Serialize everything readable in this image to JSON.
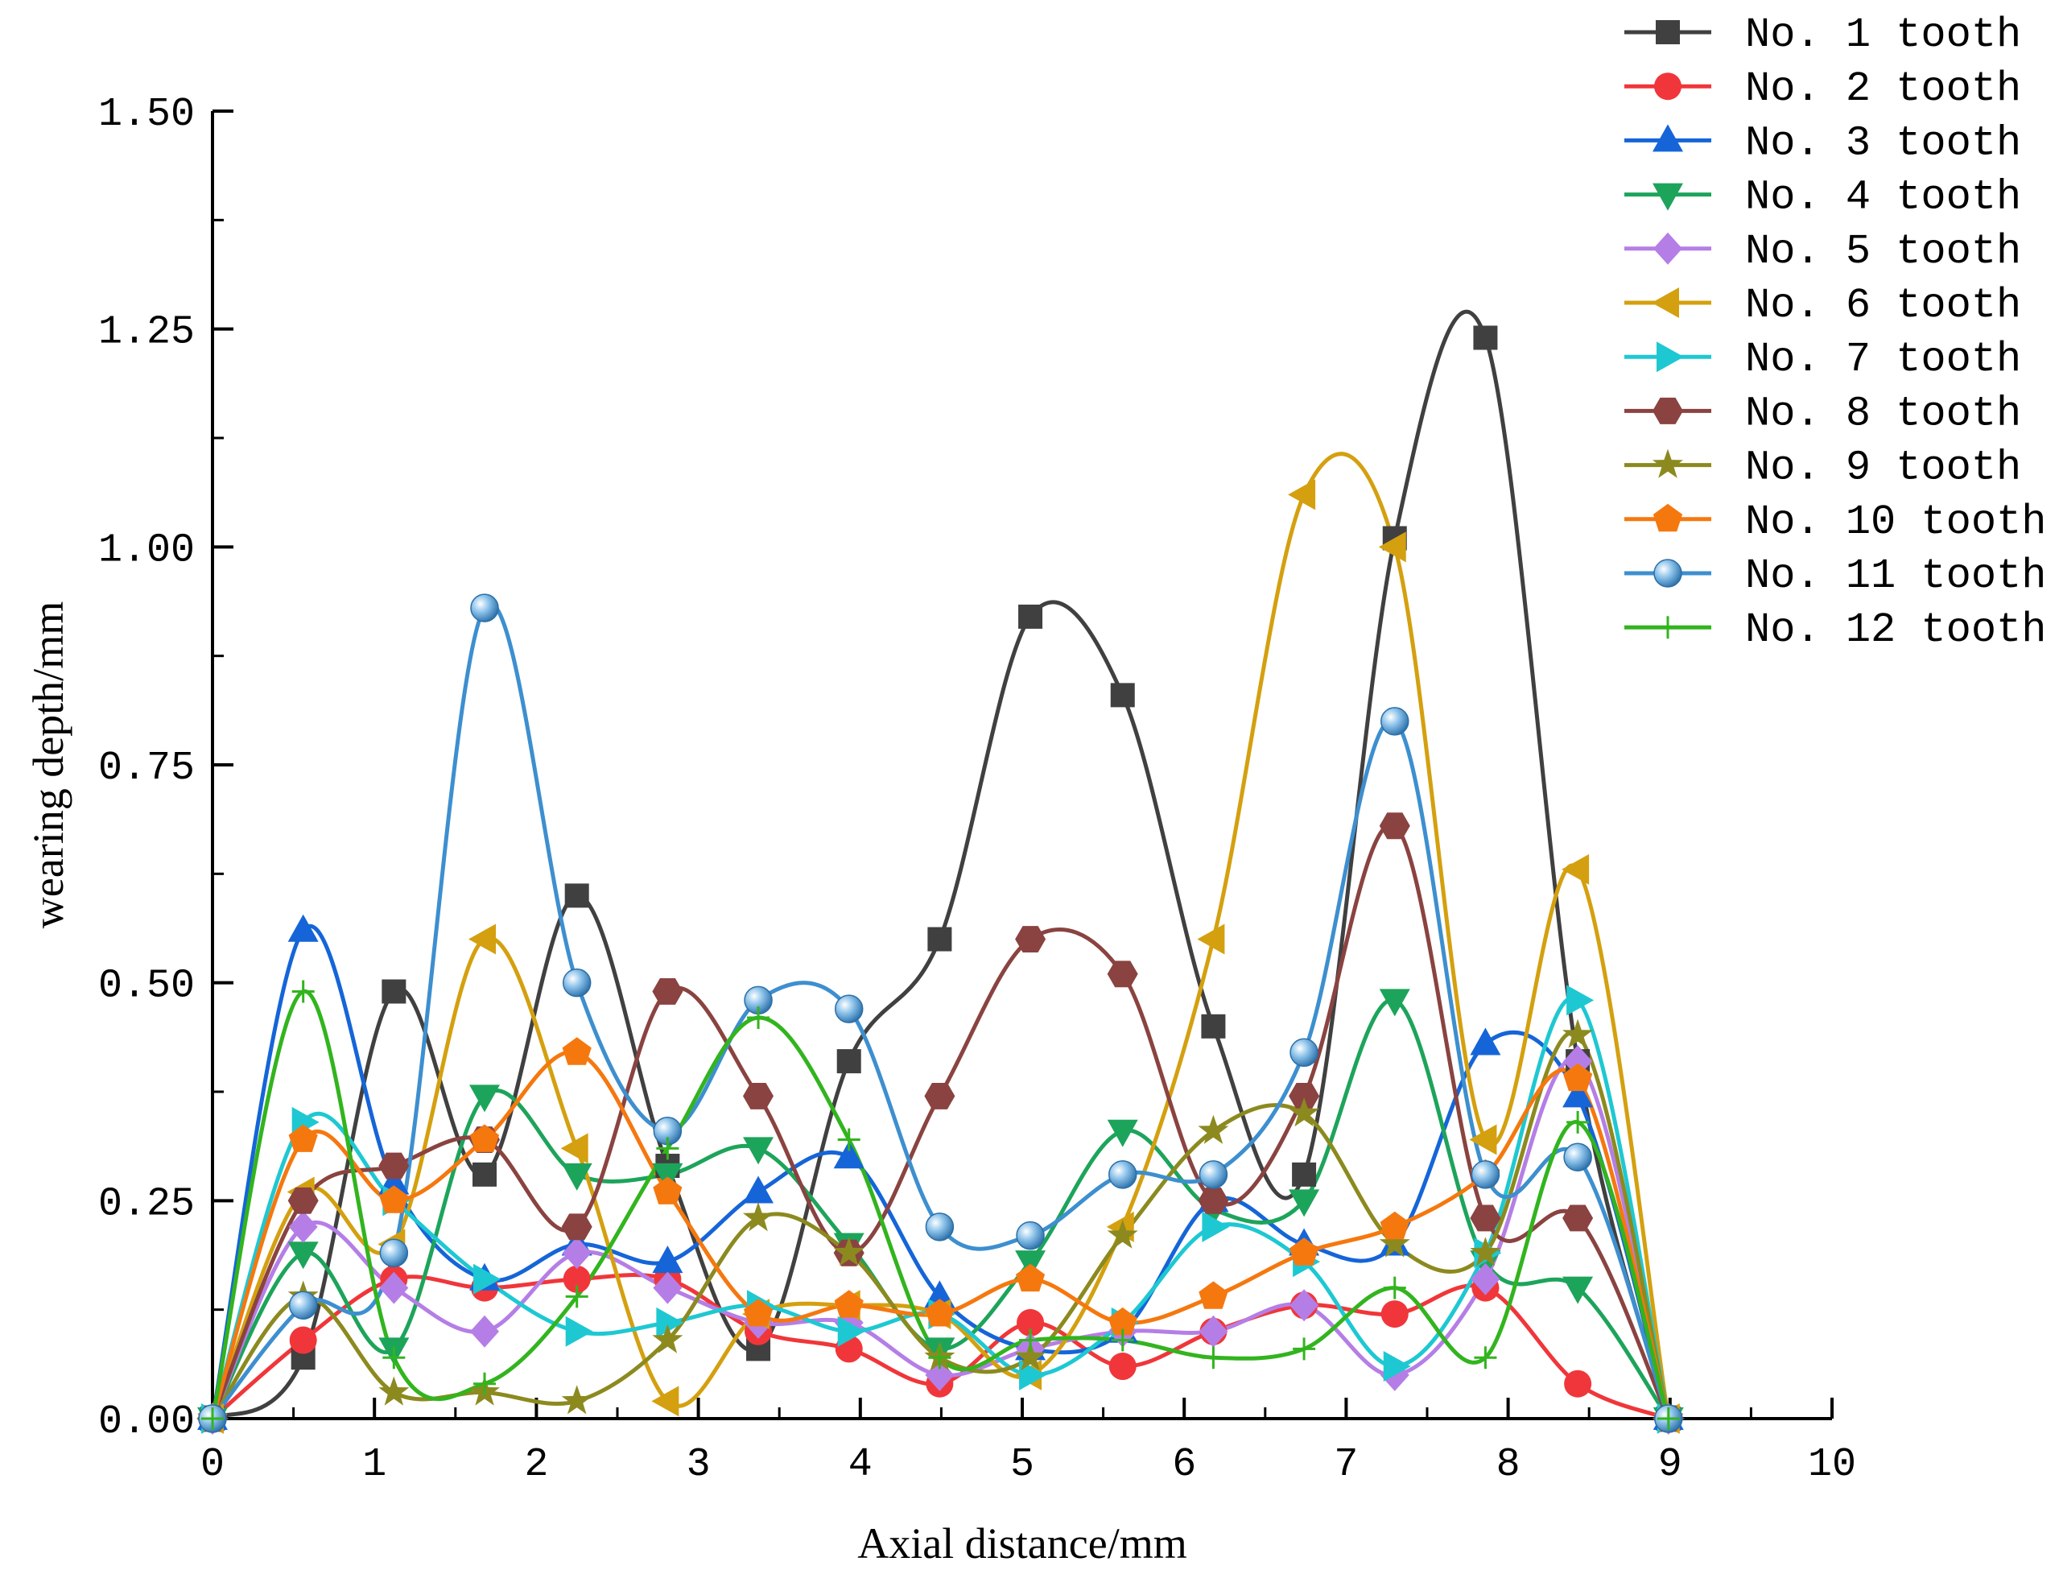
{
  "chart_data": {
    "type": "line",
    "title": "",
    "xlabel": "Axial distance/mm",
    "ylabel": "wearing depth/mm",
    "xlim": [
      0,
      10
    ],
    "ylim": [
      0,
      1.5
    ],
    "xticks": [
      0,
      1,
      2,
      3,
      4,
      5,
      6,
      7,
      8,
      9,
      10
    ],
    "yticks": [
      0.0,
      0.25,
      0.5,
      0.75,
      1.0,
      1.25,
      1.5
    ],
    "xtick_labels": [
      "0",
      "1",
      "2",
      "3",
      "4",
      "5",
      "6",
      "7",
      "8",
      "9",
      "10"
    ],
    "ytick_labels": [
      "0.00",
      "0.25",
      "0.50",
      "0.75",
      "1.00",
      "1.25",
      "1.50"
    ],
    "legend_position": "top-right",
    "x": [
      0,
      0.56,
      1.12,
      1.68,
      2.25,
      2.81,
      3.37,
      3.93,
      4.49,
      5.05,
      5.62,
      6.18,
      6.74,
      7.3,
      7.86,
      8.43,
      8.99
    ],
    "series": [
      {
        "name": "No. 1 tooth",
        "color": "#404040",
        "marker": "square",
        "values": [
          0,
          0.07,
          0.49,
          0.28,
          0.6,
          0.29,
          0.08,
          0.41,
          0.55,
          0.92,
          0.83,
          0.45,
          0.28,
          1.01,
          1.24,
          0.41,
          0
        ]
      },
      {
        "name": "No. 2 tooth",
        "color": "#f0363a",
        "marker": "circle",
        "values": [
          0,
          0.09,
          0.16,
          0.15,
          0.16,
          0.16,
          0.1,
          0.08,
          0.04,
          0.11,
          0.06,
          0.1,
          0.13,
          0.12,
          0.15,
          0.04,
          0
        ]
      },
      {
        "name": "No. 3 tooth",
        "color": "#1565d8",
        "marker": "triangle-up",
        "values": [
          0,
          0.56,
          0.27,
          0.16,
          0.2,
          0.18,
          0.26,
          0.3,
          0.14,
          0.08,
          0.1,
          0.25,
          0.2,
          0.2,
          0.43,
          0.37,
          0
        ]
      },
      {
        "name": "No. 4 tooth",
        "color": "#1da45b",
        "marker": "triangle-down",
        "values": [
          0,
          0.19,
          0.08,
          0.37,
          0.28,
          0.28,
          0.31,
          0.2,
          0.08,
          0.18,
          0.33,
          0.24,
          0.25,
          0.48,
          0.18,
          0.15,
          0
        ]
      },
      {
        "name": "No. 5 tooth",
        "color": "#b57ee6",
        "marker": "diamond",
        "values": [
          0,
          0.22,
          0.15,
          0.1,
          0.19,
          0.15,
          0.11,
          0.11,
          0.05,
          0.08,
          0.1,
          0.1,
          0.13,
          0.05,
          0.16,
          0.41,
          0
        ]
      },
      {
        "name": "No. 6 tooth",
        "color": "#d4a00f",
        "marker": "triangle-left",
        "values": [
          0,
          0.26,
          0.2,
          0.55,
          0.31,
          0.02,
          0.12,
          0.13,
          0.12,
          0.05,
          0.22,
          0.55,
          1.06,
          1.0,
          0.32,
          0.63,
          0
        ]
      },
      {
        "name": "No. 7 tooth",
        "color": "#1ec8d2",
        "marker": "triangle-right",
        "values": [
          0,
          0.34,
          0.25,
          0.16,
          0.1,
          0.11,
          0.13,
          0.1,
          0.12,
          0.05,
          0.11,
          0.22,
          0.18,
          0.06,
          0.19,
          0.48,
          0
        ]
      },
      {
        "name": "No. 8 tooth",
        "color": "#8a4340",
        "marker": "hexagon",
        "values": [
          0,
          0.25,
          0.29,
          0.32,
          0.22,
          0.49,
          0.37,
          0.19,
          0.37,
          0.55,
          0.51,
          0.25,
          0.37,
          0.68,
          0.23,
          0.23,
          0
        ]
      },
      {
        "name": "No. 9 tooth",
        "color": "#8c8a1f",
        "marker": "star",
        "values": [
          0,
          0.14,
          0.03,
          0.03,
          0.02,
          0.09,
          0.23,
          0.19,
          0.07,
          0.07,
          0.21,
          0.33,
          0.35,
          0.2,
          0.19,
          0.44,
          0
        ]
      },
      {
        "name": "No. 10 tooth",
        "color": "#f5780f",
        "marker": "pentagon",
        "values": [
          0,
          0.32,
          0.25,
          0.32,
          0.42,
          0.26,
          0.12,
          0.13,
          0.12,
          0.16,
          0.11,
          0.14,
          0.19,
          0.22,
          0.28,
          0.39,
          0
        ]
      },
      {
        "name": "No. 11 tooth",
        "color": "#3d8fcf",
        "marker": "sphere",
        "values": [
          0,
          0.13,
          0.19,
          0.93,
          0.5,
          0.33,
          0.48,
          0.47,
          0.22,
          0.21,
          0.28,
          0.28,
          0.42,
          0.8,
          0.28,
          0.3,
          0
        ]
      },
      {
        "name": "No. 12 tooth",
        "color": "#32b41e",
        "marker": "plus",
        "values": [
          0,
          0.49,
          0.07,
          0.04,
          0.14,
          0.31,
          0.46,
          0.32,
          0.07,
          0.09,
          0.09,
          0.07,
          0.08,
          0.15,
          0.07,
          0.34,
          0
        ]
      }
    ]
  }
}
